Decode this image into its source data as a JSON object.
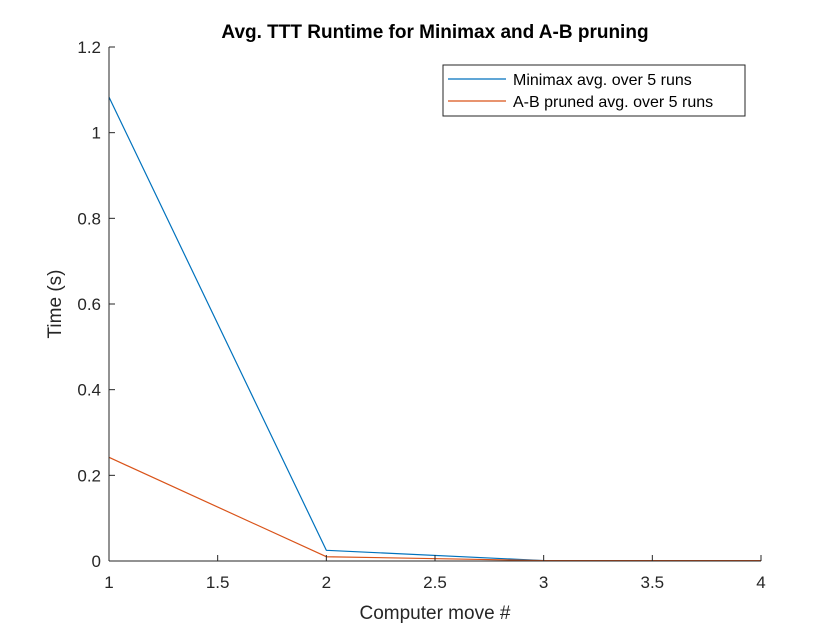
{
  "chart_data": {
    "type": "line",
    "title": "Avg. TTT Runtime for Minimax and A-B pruning",
    "xlabel": "Computer move #",
    "ylabel": "Time (s)",
    "xlim": [
      1,
      4
    ],
    "ylim": [
      0,
      1.2
    ],
    "x_ticks": [
      "1",
      "1.5",
      "2",
      "2.5",
      "3",
      "3.5",
      "4"
    ],
    "y_ticks": [
      "0",
      "0.2",
      "0.4",
      "0.6",
      "0.8",
      "1",
      "1.2"
    ],
    "x_tick_values": [
      1,
      1.5,
      2,
      2.5,
      3,
      3.5,
      4
    ],
    "y_tick_values": [
      0,
      0.2,
      0.4,
      0.6,
      0.8,
      1,
      1.2
    ],
    "grid": false,
    "legend_position": "top-right",
    "x": [
      1,
      2,
      3,
      4
    ],
    "series": [
      {
        "name": "Minimax avg. over 5 runs",
        "color": "#0072BD",
        "values": [
          1.083,
          0.025,
          0.001,
          0.001
        ]
      },
      {
        "name": "A-B pruned avg. over 5 runs",
        "color": "#D95319",
        "values": [
          0.242,
          0.01,
          0.001,
          0.001
        ]
      }
    ]
  }
}
